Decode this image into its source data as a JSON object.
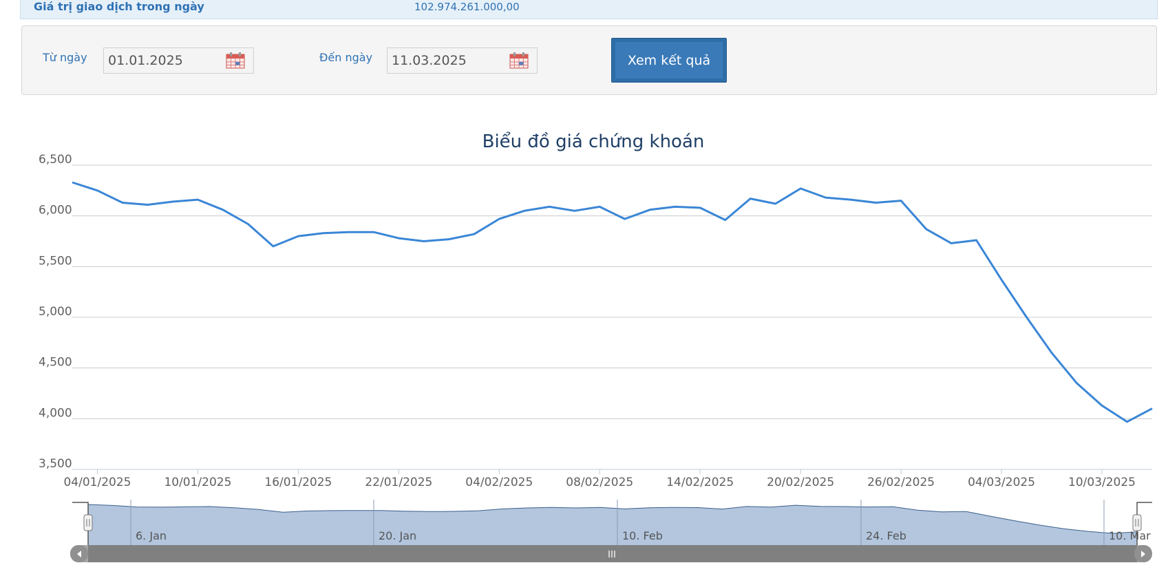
{
  "summary": {
    "label": "Giá trị giao dịch trong ngày",
    "value": "102.974.261.000,00"
  },
  "filter": {
    "from_label": "Từ ngày",
    "from_value": "01.01.2025",
    "to_label": "Đến ngày",
    "to_value": "11.03.2025",
    "submit_label": "Xem kết quả"
  },
  "colors": {
    "line": "#3a86d6",
    "navigator_fill": "#b3c6de",
    "navigator_line": "#3b5f8c",
    "scrollbar": "#808080"
  },
  "chart_data": {
    "type": "line",
    "title": "Biểu đồ giá chứng khoán",
    "ylim": [
      3500,
      6500
    ],
    "y_ticks": [
      "3,500",
      "4,000",
      "4,500",
      "5,000",
      "5,500",
      "6,000",
      "6,500"
    ],
    "grid": true,
    "x_tick_labels": [
      "04/01/2025",
      "10/01/2025",
      "16/01/2025",
      "22/01/2025",
      "04/02/2025",
      "08/02/2025",
      "14/02/2025",
      "20/02/2025",
      "26/02/2025",
      "04/03/2025",
      "10/03/2025"
    ],
    "series": [
      {
        "values": [
          6330,
          6250,
          6130,
          6110,
          6140,
          6160,
          6060,
          5920,
          5700,
          5800,
          5830,
          5840,
          5840,
          5780,
          5750,
          5770,
          5820,
          5970,
          6050,
          6090,
          6050,
          6090,
          5970,
          6060,
          6090,
          6080,
          5960,
          6170,
          6120,
          6270,
          6180,
          6160,
          6130,
          6150,
          5870,
          5730,
          5760,
          5370,
          5000,
          4650,
          4350,
          4130,
          3970,
          4100
        ]
      }
    ],
    "navigator": {
      "tick_labels": [
        "6. Jan",
        "20. Jan",
        "10. Feb",
        "24. Feb",
        "10. Mar"
      ]
    }
  }
}
